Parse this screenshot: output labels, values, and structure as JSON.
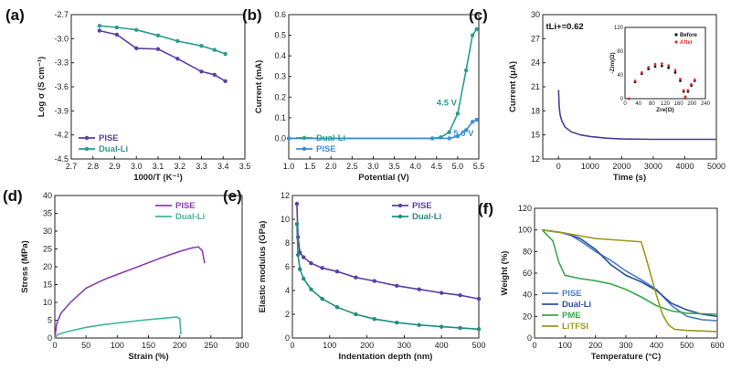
{
  "chart_data": [
    {
      "panel": "(a)",
      "type": "line",
      "xlabel": "1000/T (K⁻¹)",
      "ylabel": "Log σ (S cm⁻¹)",
      "xlim": [
        2.7,
        3.5
      ],
      "ylim": [
        -4.5,
        -2.7
      ],
      "xticks": [
        2.7,
        2.8,
        2.9,
        3.0,
        3.1,
        3.2,
        3.3,
        3.4,
        3.5
      ],
      "yticks": [
        -2.7,
        -3.0,
        -3.3,
        -3.6,
        -3.9,
        -4.2,
        -4.5
      ],
      "legend": "bottom-left",
      "series": [
        {
          "name": "PISE",
          "color": "#5a3fa6",
          "x": [
            2.83,
            2.91,
            3.0,
            3.1,
            3.19,
            3.3,
            3.36,
            3.41
          ],
          "y": [
            -2.9,
            -2.95,
            -3.12,
            -3.13,
            -3.25,
            -3.41,
            -3.45,
            -3.53
          ]
        },
        {
          "name": "Dual-Li",
          "color": "#2a9d8f",
          "x": [
            2.83,
            2.91,
            3.0,
            3.1,
            3.19,
            3.3,
            3.36,
            3.41
          ],
          "y": [
            -2.84,
            -2.86,
            -2.89,
            -2.96,
            -3.03,
            -3.09,
            -3.14,
            -3.19
          ]
        }
      ]
    },
    {
      "panel": "(b)",
      "type": "line",
      "xlabel": "Potential (V)",
      "ylabel": "Current (mA)",
      "xlim": [
        1.0,
        5.5
      ],
      "ylim": [
        -0.1,
        0.6
      ],
      "xticks": [
        1.0,
        1.5,
        2.0,
        2.5,
        3.0,
        3.5,
        4.0,
        4.5,
        5.0,
        5.5
      ],
      "yticks": [
        0.0,
        0.1,
        0.2,
        0.3,
        0.4,
        0.5,
        0.6
      ],
      "legend": "bottom-left",
      "annotations": [
        "4.5 V",
        "5.0 V"
      ],
      "series": [
        {
          "name": "Dual-Li",
          "color": "#2a9d8f",
          "x": [
            1.0,
            4.4,
            4.6,
            4.8,
            5.0,
            5.2,
            5.35,
            5.45
          ],
          "y": [
            0.0,
            0.0,
            0.005,
            0.03,
            0.12,
            0.33,
            0.5,
            0.53
          ]
        },
        {
          "name": "PISE",
          "color": "#3a8fd9",
          "x": [
            1.0,
            4.8,
            5.0,
            5.2,
            5.35,
            5.45
          ],
          "y": [
            0.0,
            0.0,
            0.01,
            0.04,
            0.08,
            0.09
          ]
        }
      ]
    },
    {
      "panel": "(c)",
      "type": "line",
      "xlabel": "Time (s)",
      "ylabel": "Current (μA)",
      "xlim": [
        -500,
        5000
      ],
      "ylim": [
        12,
        30
      ],
      "xticks": [
        0,
        1000,
        2000,
        3000,
        4000,
        5000
      ],
      "yticks": [
        12,
        15,
        18,
        21,
        24,
        27,
        30
      ],
      "annotation": "tLi+=0.62",
      "series": [
        {
          "name": "current",
          "color": "#4a3c9c",
          "x": [
            0,
            20,
            50,
            100,
            200,
            400,
            700,
            1000,
            1500,
            2000,
            3000,
            4000,
            5000
          ],
          "y": [
            20.6,
            18.5,
            17.5,
            16.8,
            16.0,
            15.4,
            15.0,
            14.8,
            14.6,
            14.5,
            14.45,
            14.45,
            14.45
          ]
        }
      ],
      "inset": {
        "type": "scatter",
        "xlabel": "Zre(Ω)",
        "ylabel": "-Zim(Ω)",
        "xlim": [
          0,
          240
        ],
        "ylim": [
          0,
          120
        ],
        "xticks": [
          0,
          40,
          80,
          120,
          160,
          200,
          240
        ],
        "yticks": [
          0,
          40,
          80,
          120
        ],
        "legend": "top-right",
        "series": [
          {
            "name": "Before",
            "color": "#111111",
            "x": [
              12,
              30,
              50,
              70,
              90,
              110,
              130,
              150,
              165,
              175,
              180,
              188,
              198,
              208
            ],
            "y": [
              0,
              28,
              42,
              50,
              54,
              55,
              52,
              44,
              30,
              12,
              3,
              12,
              22,
              30
            ]
          },
          {
            "name": "After",
            "color": "#e03030",
            "x": [
              12,
              30,
              50,
              70,
              90,
              110,
              130,
              150,
              165,
              175,
              180,
              188,
              198,
              208
            ],
            "y": [
              0,
              30,
              44,
              53,
              58,
              59,
              56,
              48,
              33,
              14,
              3,
              14,
              24,
              32
            ]
          }
        ]
      }
    },
    {
      "panel": "(d)",
      "type": "line",
      "xlabel": "Strain (%)",
      "ylabel": "Stress (MPa)",
      "xlim": [
        0,
        300
      ],
      "ylim": [
        0,
        40
      ],
      "xticks": [
        0,
        50,
        100,
        150,
        200,
        250,
        300
      ],
      "yticks": [
        0,
        5,
        10,
        15,
        20,
        25,
        30,
        35,
        40
      ],
      "legend": "top-right",
      "series": [
        {
          "name": "PISE",
          "color": "#8b3fb3",
          "x": [
            0,
            3,
            10,
            25,
            50,
            80,
            110,
            140,
            170,
            200,
            220,
            230,
            236,
            240
          ],
          "y": [
            0,
            4,
            7,
            10,
            14,
            16.5,
            18.5,
            20.5,
            22.5,
            24.3,
            25.3,
            25.6,
            24.5,
            21
          ]
        },
        {
          "name": "Dual-Li",
          "color": "#3fb79a",
          "x": [
            0,
            5,
            20,
            50,
            80,
            110,
            140,
            170,
            195,
            200,
            202
          ],
          "y": [
            0,
            1,
            1.8,
            3.0,
            3.8,
            4.4,
            5.0,
            5.5,
            5.9,
            5.5,
            1.0
          ]
        }
      ]
    },
    {
      "panel": "(e)",
      "type": "line",
      "xlabel": "Indentation depth (nm)",
      "ylabel": "Elastic modulus (GPa)",
      "xlim": [
        0,
        500
      ],
      "ylim": [
        0,
        12
      ],
      "xticks": [
        0,
        100,
        200,
        300,
        400,
        500
      ],
      "yticks": [
        0,
        2,
        4,
        6,
        8,
        10,
        12
      ],
      "legend": "top-right",
      "series": [
        {
          "name": "PISE",
          "color": "#5a3fa6",
          "x": [
            12,
            15,
            20,
            30,
            50,
            80,
            120,
            170,
            220,
            280,
            340,
            400,
            450,
            500
          ],
          "y": [
            11.3,
            8.5,
            7.2,
            6.8,
            6.3,
            5.9,
            5.6,
            5.1,
            4.8,
            4.4,
            4.1,
            3.8,
            3.6,
            3.3
          ]
        },
        {
          "name": "Dual-Li",
          "color": "#1e8f80",
          "x": [
            12,
            15,
            20,
            30,
            50,
            80,
            120,
            170,
            220,
            280,
            340,
            400,
            450,
            500
          ],
          "y": [
            9.6,
            7.0,
            5.8,
            5.0,
            4.1,
            3.3,
            2.6,
            2.0,
            1.6,
            1.3,
            1.1,
            0.95,
            0.85,
            0.75
          ]
        }
      ]
    },
    {
      "panel": "(f)",
      "type": "line",
      "xlabel": "Temperature (°C)",
      "ylabel": "Weight (%)",
      "xlim": [
        0,
        600
      ],
      "ylim": [
        0,
        120
      ],
      "xticks": [
        0,
        100,
        200,
        300,
        400,
        500,
        600
      ],
      "yticks": [
        0,
        20,
        40,
        60,
        80,
        100,
        120
      ],
      "legend": "bottom-left",
      "series": [
        {
          "name": "PISE",
          "color": "#4a7fc4",
          "x": [
            25,
            80,
            120,
            160,
            200,
            250,
            300,
            350,
            400,
            450,
            500,
            550,
            600
          ],
          "y": [
            100,
            98,
            95,
            88,
            80,
            72,
            62,
            54,
            45,
            30,
            20,
            17,
            16
          ]
        },
        {
          "name": "Dual-Li",
          "color": "#2e4fa0",
          "x": [
            25,
            100,
            150,
            200,
            250,
            300,
            350,
            400,
            450,
            500,
            550,
            600
          ],
          "y": [
            100,
            97,
            92,
            82,
            68,
            58,
            52,
            44,
            32,
            26,
            22,
            20
          ]
        },
        {
          "name": "PME",
          "color": "#3aa84a",
          "x": [
            25,
            60,
            80,
            100,
            150,
            200,
            250,
            300,
            350,
            400,
            450,
            500,
            600
          ],
          "y": [
            100,
            90,
            70,
            58,
            55,
            53,
            50,
            45,
            38,
            30,
            25,
            23,
            22
          ]
        },
        {
          "name": "LiTFSI",
          "color": "#9c9a1c",
          "x": [
            25,
            100,
            200,
            300,
            350,
            360,
            380,
            400,
            420,
            440,
            460,
            500,
            600
          ],
          "y": [
            100,
            97,
            92,
            90,
            89,
            80,
            60,
            40,
            22,
            12,
            8,
            7,
            6
          ]
        }
      ]
    }
  ]
}
